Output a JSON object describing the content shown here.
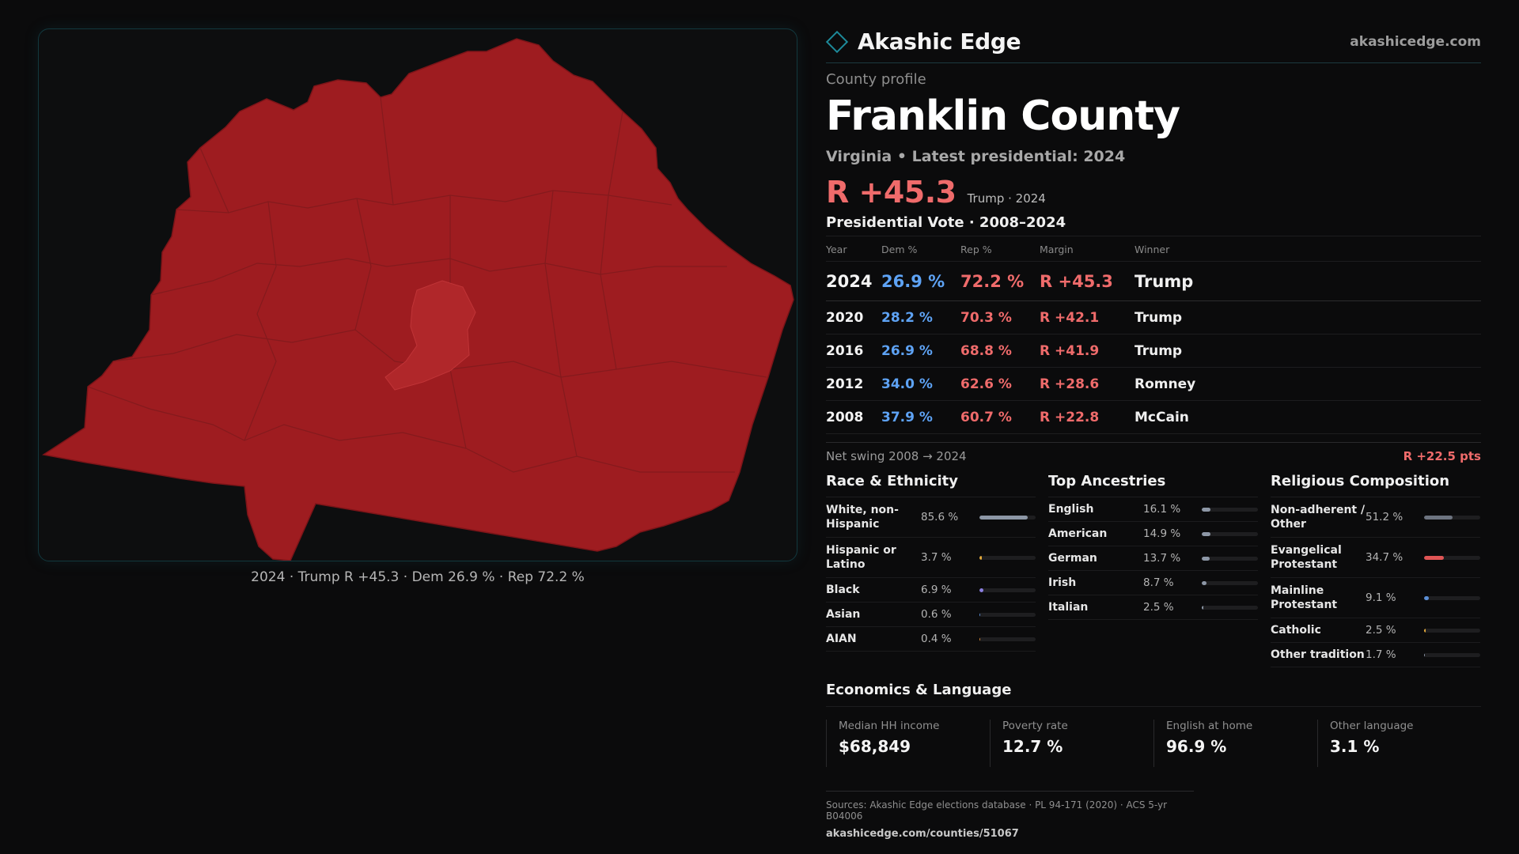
{
  "brand": {
    "name": "Akashic Edge",
    "url": "akashicedge.com"
  },
  "profile": {
    "eyebrow": "County profile",
    "title": "Franklin County",
    "subtitle": "Virginia • Latest presidential: 2024",
    "margin": "R +45.3",
    "margin_note": "Trump · 2024"
  },
  "map": {
    "caption": "2024 · Trump R +45.3 · Dem 26.9 % · Rep 72.2 %",
    "fill_color": "#9e1c20",
    "highlight_color": "#b0272a"
  },
  "votes": {
    "title": "Presidential Vote · 2008–2024",
    "headers": {
      "year": "Year",
      "dem": "Dem %",
      "rep": "Rep %",
      "margin": "Margin",
      "winner": "Winner"
    },
    "rows": [
      {
        "year": "2024",
        "dem": "26.9 %",
        "rep": "72.2 %",
        "margin": "R +45.3",
        "winner": "Trump"
      },
      {
        "year": "2020",
        "dem": "28.2 %",
        "rep": "70.3 %",
        "margin": "R +42.1",
        "winner": "Trump"
      },
      {
        "year": "2016",
        "dem": "26.9 %",
        "rep": "68.8 %",
        "margin": "R +41.9",
        "winner": "Trump"
      },
      {
        "year": "2012",
        "dem": "34.0 %",
        "rep": "62.6 %",
        "margin": "R +28.6",
        "winner": "Romney"
      },
      {
        "year": "2008",
        "dem": "37.9 %",
        "rep": "60.7 %",
        "margin": "R +22.8",
        "winner": "McCain"
      }
    ]
  },
  "swing": {
    "label": "Net swing 2008 → 2024",
    "value": "R +22.5 pts"
  },
  "race": {
    "title": "Race & Ethnicity",
    "items": [
      {
        "label": "White, non-Hispanic",
        "value": "85.6 %",
        "pct": 85.6,
        "color": "#8d97a6"
      },
      {
        "label": "Hispanic or Latino",
        "value": "3.7 %",
        "pct": 3.7,
        "color": "#e3a93b"
      },
      {
        "label": "Black",
        "value": "6.9 %",
        "pct": 6.9,
        "color": "#8b7fe0"
      },
      {
        "label": "Asian",
        "value": "0.6 %",
        "pct": 0.6,
        "color": "#5b8fd6"
      },
      {
        "label": "AIAN",
        "value": "0.4 %",
        "pct": 0.4,
        "color": "#d98a3a"
      }
    ]
  },
  "ancestry": {
    "title": "Top Ancestries",
    "items": [
      {
        "label": "English",
        "value": "16.1 %",
        "pct": 16.1,
        "color": "#8d97a6"
      },
      {
        "label": "American",
        "value": "14.9 %",
        "pct": 14.9,
        "color": "#8d97a6"
      },
      {
        "label": "German",
        "value": "13.7 %",
        "pct": 13.7,
        "color": "#8d97a6"
      },
      {
        "label": "Irish",
        "value": "8.7 %",
        "pct": 8.7,
        "color": "#8d97a6"
      },
      {
        "label": "Italian",
        "value": "2.5 %",
        "pct": 2.5,
        "color": "#8d97a6"
      }
    ]
  },
  "religion": {
    "title": "Religious Composition",
    "items": [
      {
        "label": "Non-adherent / Other",
        "value": "51.2 %",
        "pct": 51.2,
        "color": "#6d7480"
      },
      {
        "label": "Evangelical Protestant",
        "value": "34.7 %",
        "pct": 34.7,
        "color": "#e05555"
      },
      {
        "label": "Mainline Protestant",
        "value": "9.1 %",
        "pct": 9.1,
        "color": "#5b8fd6"
      },
      {
        "label": "Catholic",
        "value": "2.5 %",
        "pct": 2.5,
        "color": "#e3a93b"
      },
      {
        "label": "Other tradition",
        "value": "1.7 %",
        "pct": 1.7,
        "color": "#8d97a6"
      }
    ]
  },
  "economics": {
    "title": "Economics & Language",
    "items": [
      {
        "label": "Median HH income",
        "value": "$68,849"
      },
      {
        "label": "Poverty rate",
        "value": "12.7 %"
      },
      {
        "label": "English at home",
        "value": "96.9 %"
      },
      {
        "label": "Other language",
        "value": "3.1 %"
      }
    ]
  },
  "sources": {
    "line": "Sources: Akashic Edge elections database · PL 94-171 (2020) · ACS 5-yr B04006",
    "url": "akashicedge.com/counties/51067"
  }
}
